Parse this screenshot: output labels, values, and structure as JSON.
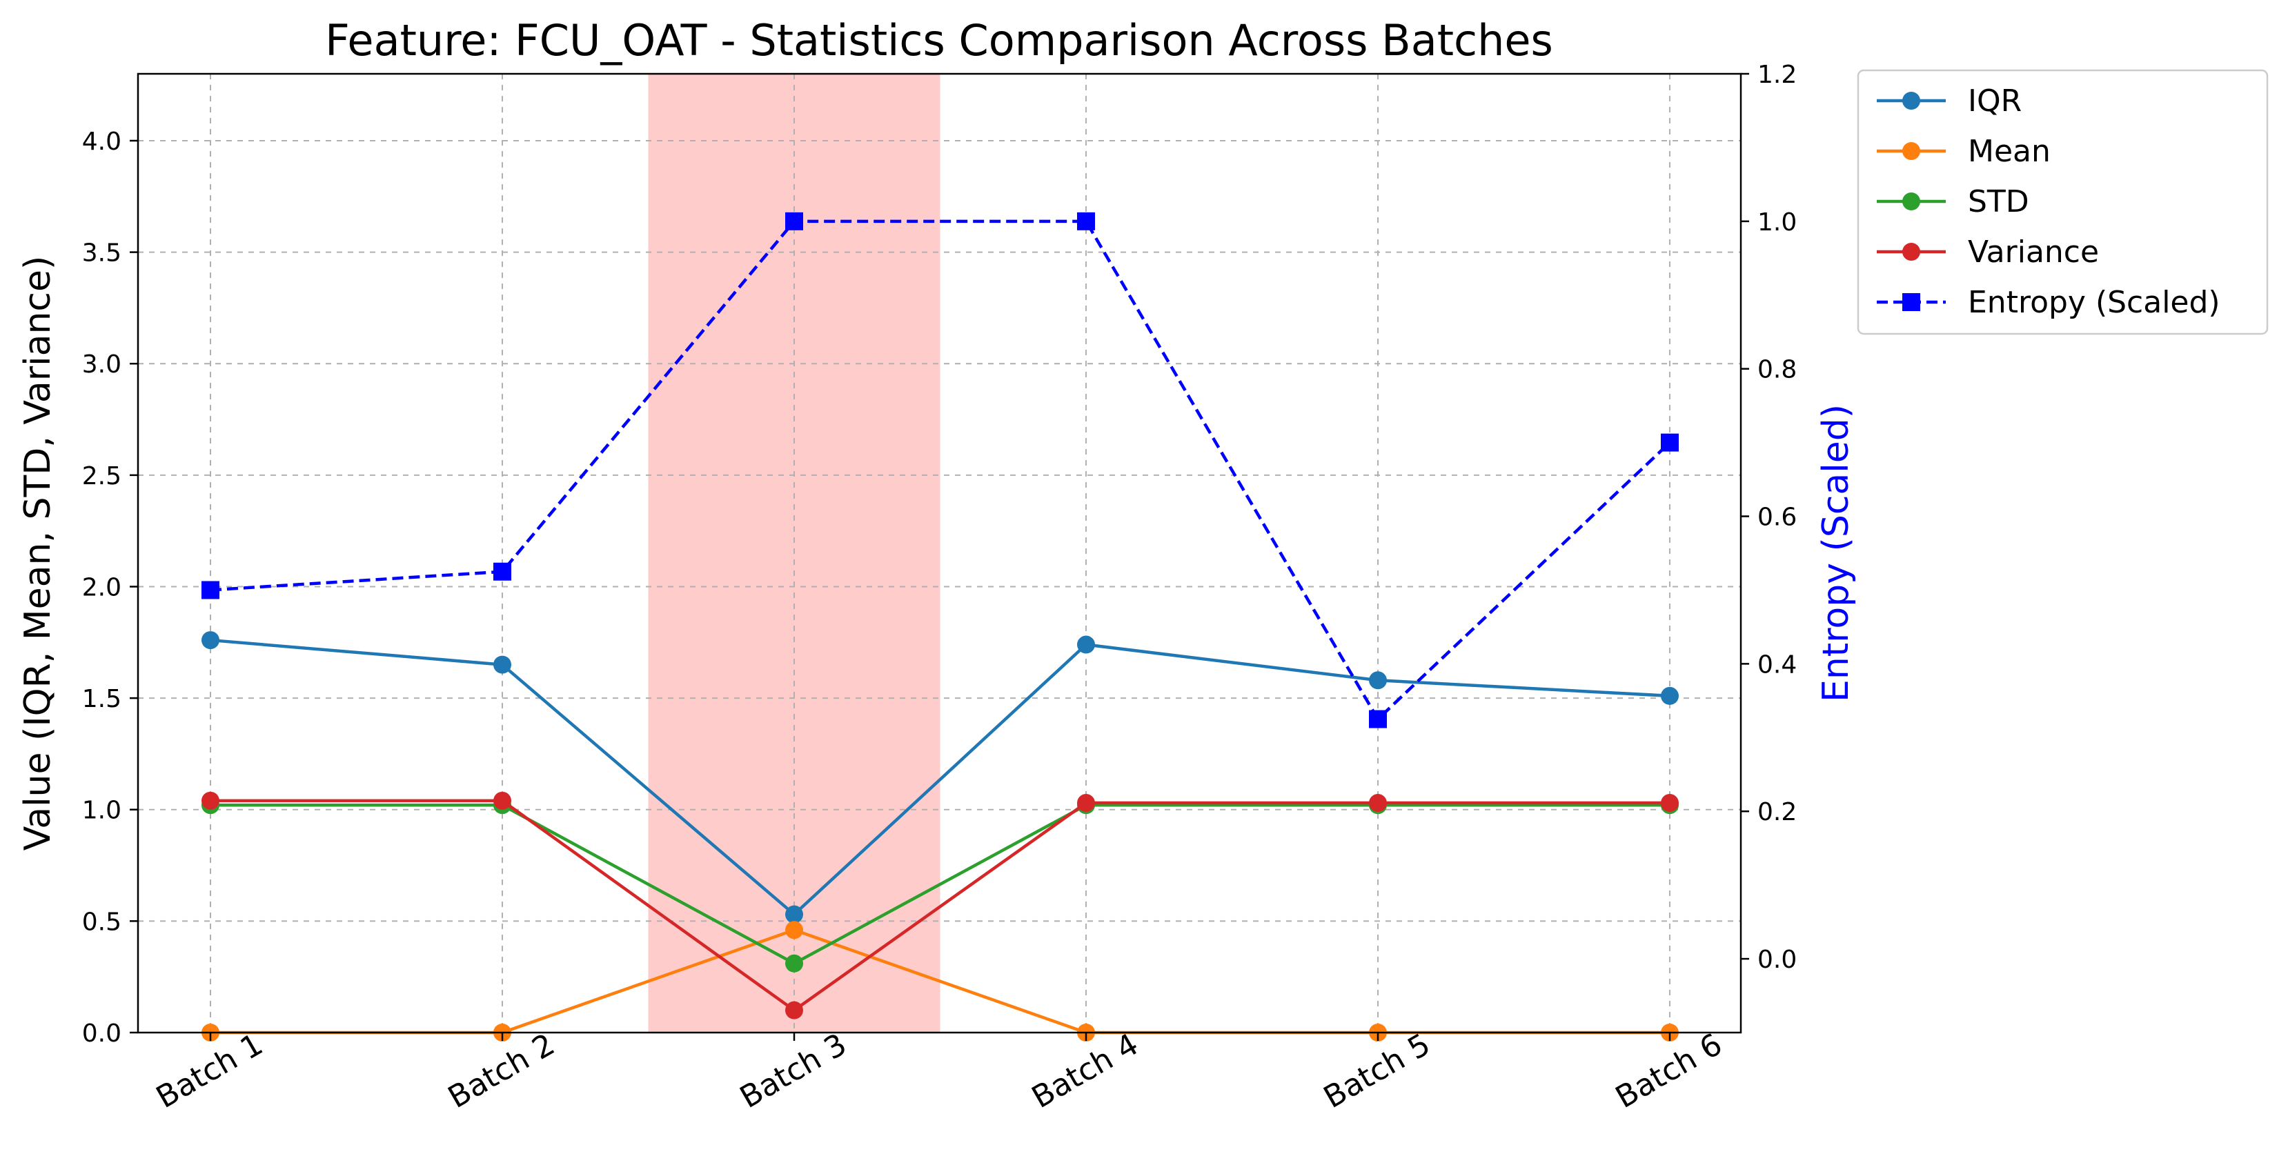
{
  "chart_data": {
    "type": "line",
    "title": "Feature: FCU_OAT - Statistics Comparison Across Batches",
    "categories": [
      "Batch 1",
      "Batch 2",
      "Batch 3",
      "Batch 4",
      "Batch 5",
      "Batch 6"
    ],
    "ylabel": "Value (IQR, Mean, STD, Variance)",
    "ylim": [
      0,
      4.3
    ],
    "yticks": [
      "0.0",
      "0.5",
      "1.0",
      "1.5",
      "2.0",
      "2.5",
      "3.0",
      "3.5",
      "4.0"
    ],
    "ylabel2": "Entropy (Scaled)",
    "ylim2": [
      -0.1,
      1.2
    ],
    "yticks2": [
      "0.0",
      "0.2",
      "0.4",
      "0.6",
      "0.8",
      "1.0",
      "1.2"
    ],
    "grid": true,
    "legend_position": "outside top-right",
    "highlight": {
      "category": "Batch 3",
      "color": "#ffcccc"
    },
    "series": [
      {
        "name": "IQR",
        "axis": "left",
        "color": "#1f77b4",
        "style": "solid",
        "marker": "circle",
        "values": [
          1.76,
          1.65,
          0.53,
          1.74,
          1.58,
          1.51
        ]
      },
      {
        "name": "Mean",
        "axis": "left",
        "color": "#ff7f0e",
        "style": "solid",
        "marker": "circle",
        "values": [
          0.0,
          0.0,
          0.46,
          0.0,
          0.0,
          0.0
        ]
      },
      {
        "name": "STD",
        "axis": "left",
        "color": "#2ca02c",
        "style": "solid",
        "marker": "circle",
        "values": [
          1.02,
          1.02,
          0.31,
          1.02,
          1.02,
          1.02
        ]
      },
      {
        "name": "Variance",
        "axis": "left",
        "color": "#d62728",
        "style": "solid",
        "marker": "circle",
        "values": [
          1.04,
          1.04,
          0.1,
          1.03,
          1.03,
          1.03
        ]
      },
      {
        "name": "Entropy (Scaled)",
        "axis": "right",
        "color": "#0000ff",
        "style": "dashed",
        "marker": "square",
        "values": [
          0.5,
          0.525,
          1.0,
          1.0,
          0.325,
          0.7
        ]
      }
    ]
  }
}
